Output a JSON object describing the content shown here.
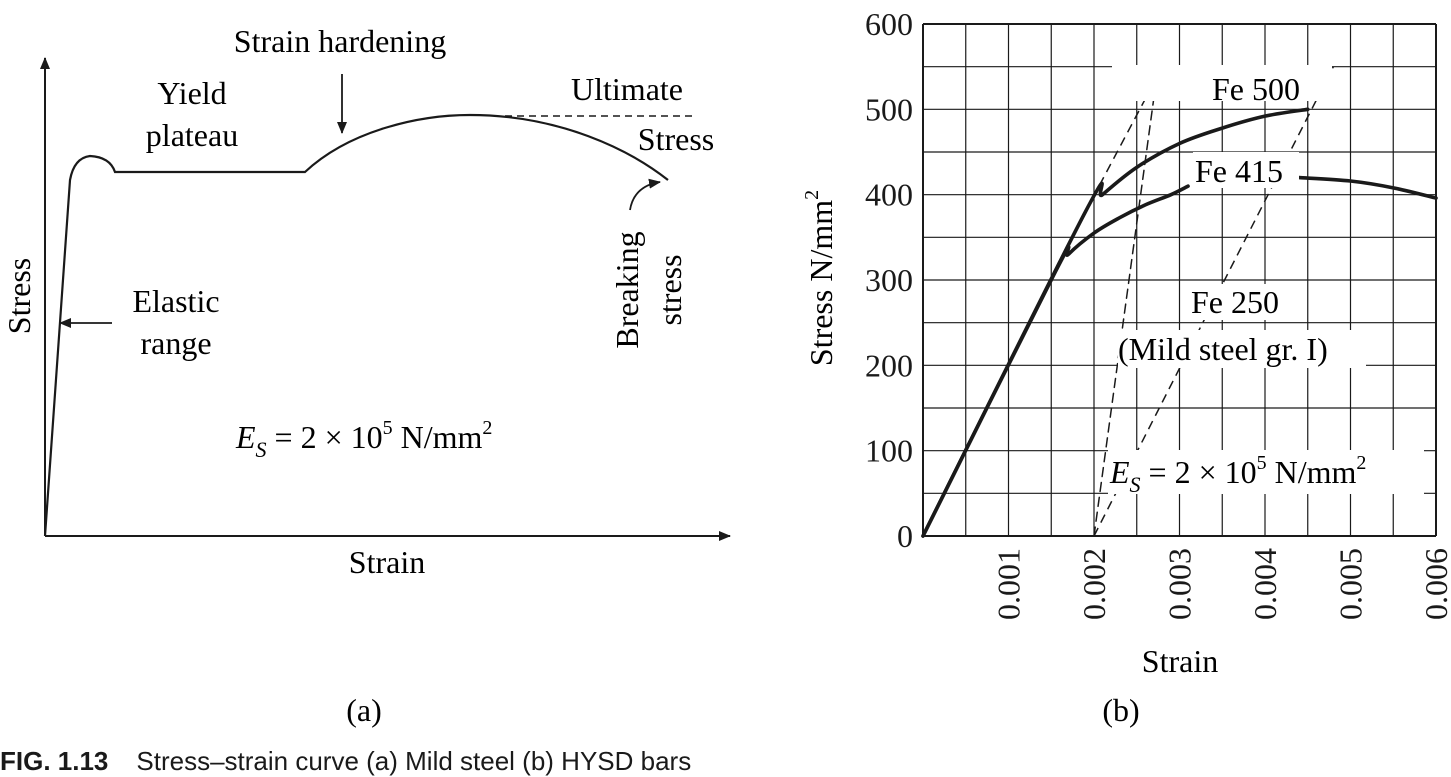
{
  "figure_caption": {
    "number": "FIG. 1.13",
    "text": "Stress–strain curve (a) Mild steel (b) HYSD bars"
  },
  "panel_a": {
    "label": "(a)",
    "xlabel": "Strain",
    "ylabel": "Stress",
    "annotations": {
      "strain_hardening": "Strain hardening",
      "yield_line1": "Yield",
      "yield_line2": "plateau",
      "ultimate_line1": "Ultimate",
      "ultimate_line2": "Stress",
      "breaking_line1": "Breaking",
      "breaking_line2": "stress",
      "elastic_line1": "Elastic",
      "elastic_line2": "range",
      "modulus_E": "E",
      "modulus_sub": "S",
      "modulus_mid": " = 2 × 10",
      "modulus_exp": "5",
      "modulus_unit": " N/mm",
      "modulus_unit_exp": "2"
    }
  },
  "chart_data": {
    "type": "line",
    "xlabel": "Strain",
    "ylabel_main": "Stress N/mm",
    "ylabel_exp": "2",
    "xlim": [
      0,
      0.006
    ],
    "ylim": [
      0,
      600
    ],
    "xticks": [
      "0.001",
      "0.002",
      "0.003",
      "0.004",
      "0.005",
      "0.006"
    ],
    "yticks": [
      "0",
      "100",
      "200",
      "300",
      "400",
      "500",
      "600"
    ],
    "grid": true,
    "panel_label": "(b)",
    "series": [
      {
        "name": "Fe 500",
        "style": "solid",
        "x": [
          0,
          0.0019,
          0.0021,
          0.0025,
          0.003,
          0.0035,
          0.004,
          0.0045
        ],
        "y": [
          0,
          380,
          400,
          432,
          460,
          478,
          492,
          500
        ]
      },
      {
        "name": "Fe 415",
        "style": "solid",
        "x": [
          0,
          0.00155,
          0.0017,
          0.002,
          0.0023,
          0.0026,
          0.0029,
          0.0031
        ],
        "y": [
          0,
          310,
          330,
          355,
          373,
          388,
          400,
          410
        ]
      },
      {
        "name": "Fe 415",
        "style": "solid",
        "x": [
          0.0044,
          0.005,
          0.0055,
          0.006
        ],
        "y": [
          420,
          416,
          408,
          396
        ]
      },
      {
        "name": "Fe 250 (Mild steel gr. I)",
        "style": "dashed",
        "x": [
          0.002,
          0.00275
        ],
        "y": [
          0,
          550
        ]
      }
    ],
    "guide_lines": [
      {
        "x": [
          0.0019,
          0.0028
        ],
        "y": [
          380,
          550
        ]
      },
      {
        "x": [
          0.002,
          0.0048
        ],
        "y": [
          0,
          550
        ]
      }
    ],
    "annotations": {
      "fe500": "Fe 500",
      "fe415": "Fe 415",
      "fe250": "Fe 250",
      "mild": "(Mild steel gr. I)",
      "modulus_E": "E",
      "modulus_sub": "S",
      "modulus_mid": " = 2 × 10",
      "modulus_exp": "5",
      "modulus_unit": " N/mm",
      "modulus_unit_exp": "2"
    }
  }
}
